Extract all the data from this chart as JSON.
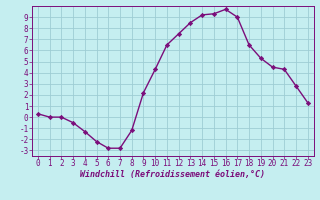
{
  "x": [
    0,
    1,
    2,
    3,
    4,
    5,
    6,
    7,
    8,
    9,
    10,
    11,
    12,
    13,
    14,
    15,
    16,
    17,
    18,
    19,
    20,
    21,
    22,
    23
  ],
  "y": [
    0.3,
    0.0,
    0.0,
    -0.5,
    -1.3,
    -2.2,
    -2.8,
    -2.8,
    -1.2,
    2.2,
    4.3,
    6.5,
    7.5,
    8.5,
    9.2,
    9.3,
    9.7,
    9.0,
    6.5,
    5.3,
    4.5,
    4.3,
    2.8,
    1.3
  ],
  "line_color": "#7b0e7b",
  "bg_color": "#c5eef0",
  "grid_color": "#9ecdd4",
  "xlabel": "Windchill (Refroidissement éolien,°C)",
  "xlabel_color": "#7b0e7b",
  "tick_color": "#7b0e7b",
  "ylim": [
    -3.5,
    10.0
  ],
  "xlim": [
    -0.5,
    23.5
  ],
  "yticks": [
    -3,
    -2,
    -1,
    0,
    1,
    2,
    3,
    4,
    5,
    6,
    7,
    8,
    9
  ],
  "xticks": [
    0,
    1,
    2,
    3,
    4,
    5,
    6,
    7,
    8,
    9,
    10,
    11,
    12,
    13,
    14,
    15,
    16,
    17,
    18,
    19,
    20,
    21,
    22,
    23
  ],
  "marker": "D",
  "markersize": 2.2,
  "linewidth": 1.0,
  "tick_fontsize": 5.5,
  "xlabel_fontsize": 6.0
}
